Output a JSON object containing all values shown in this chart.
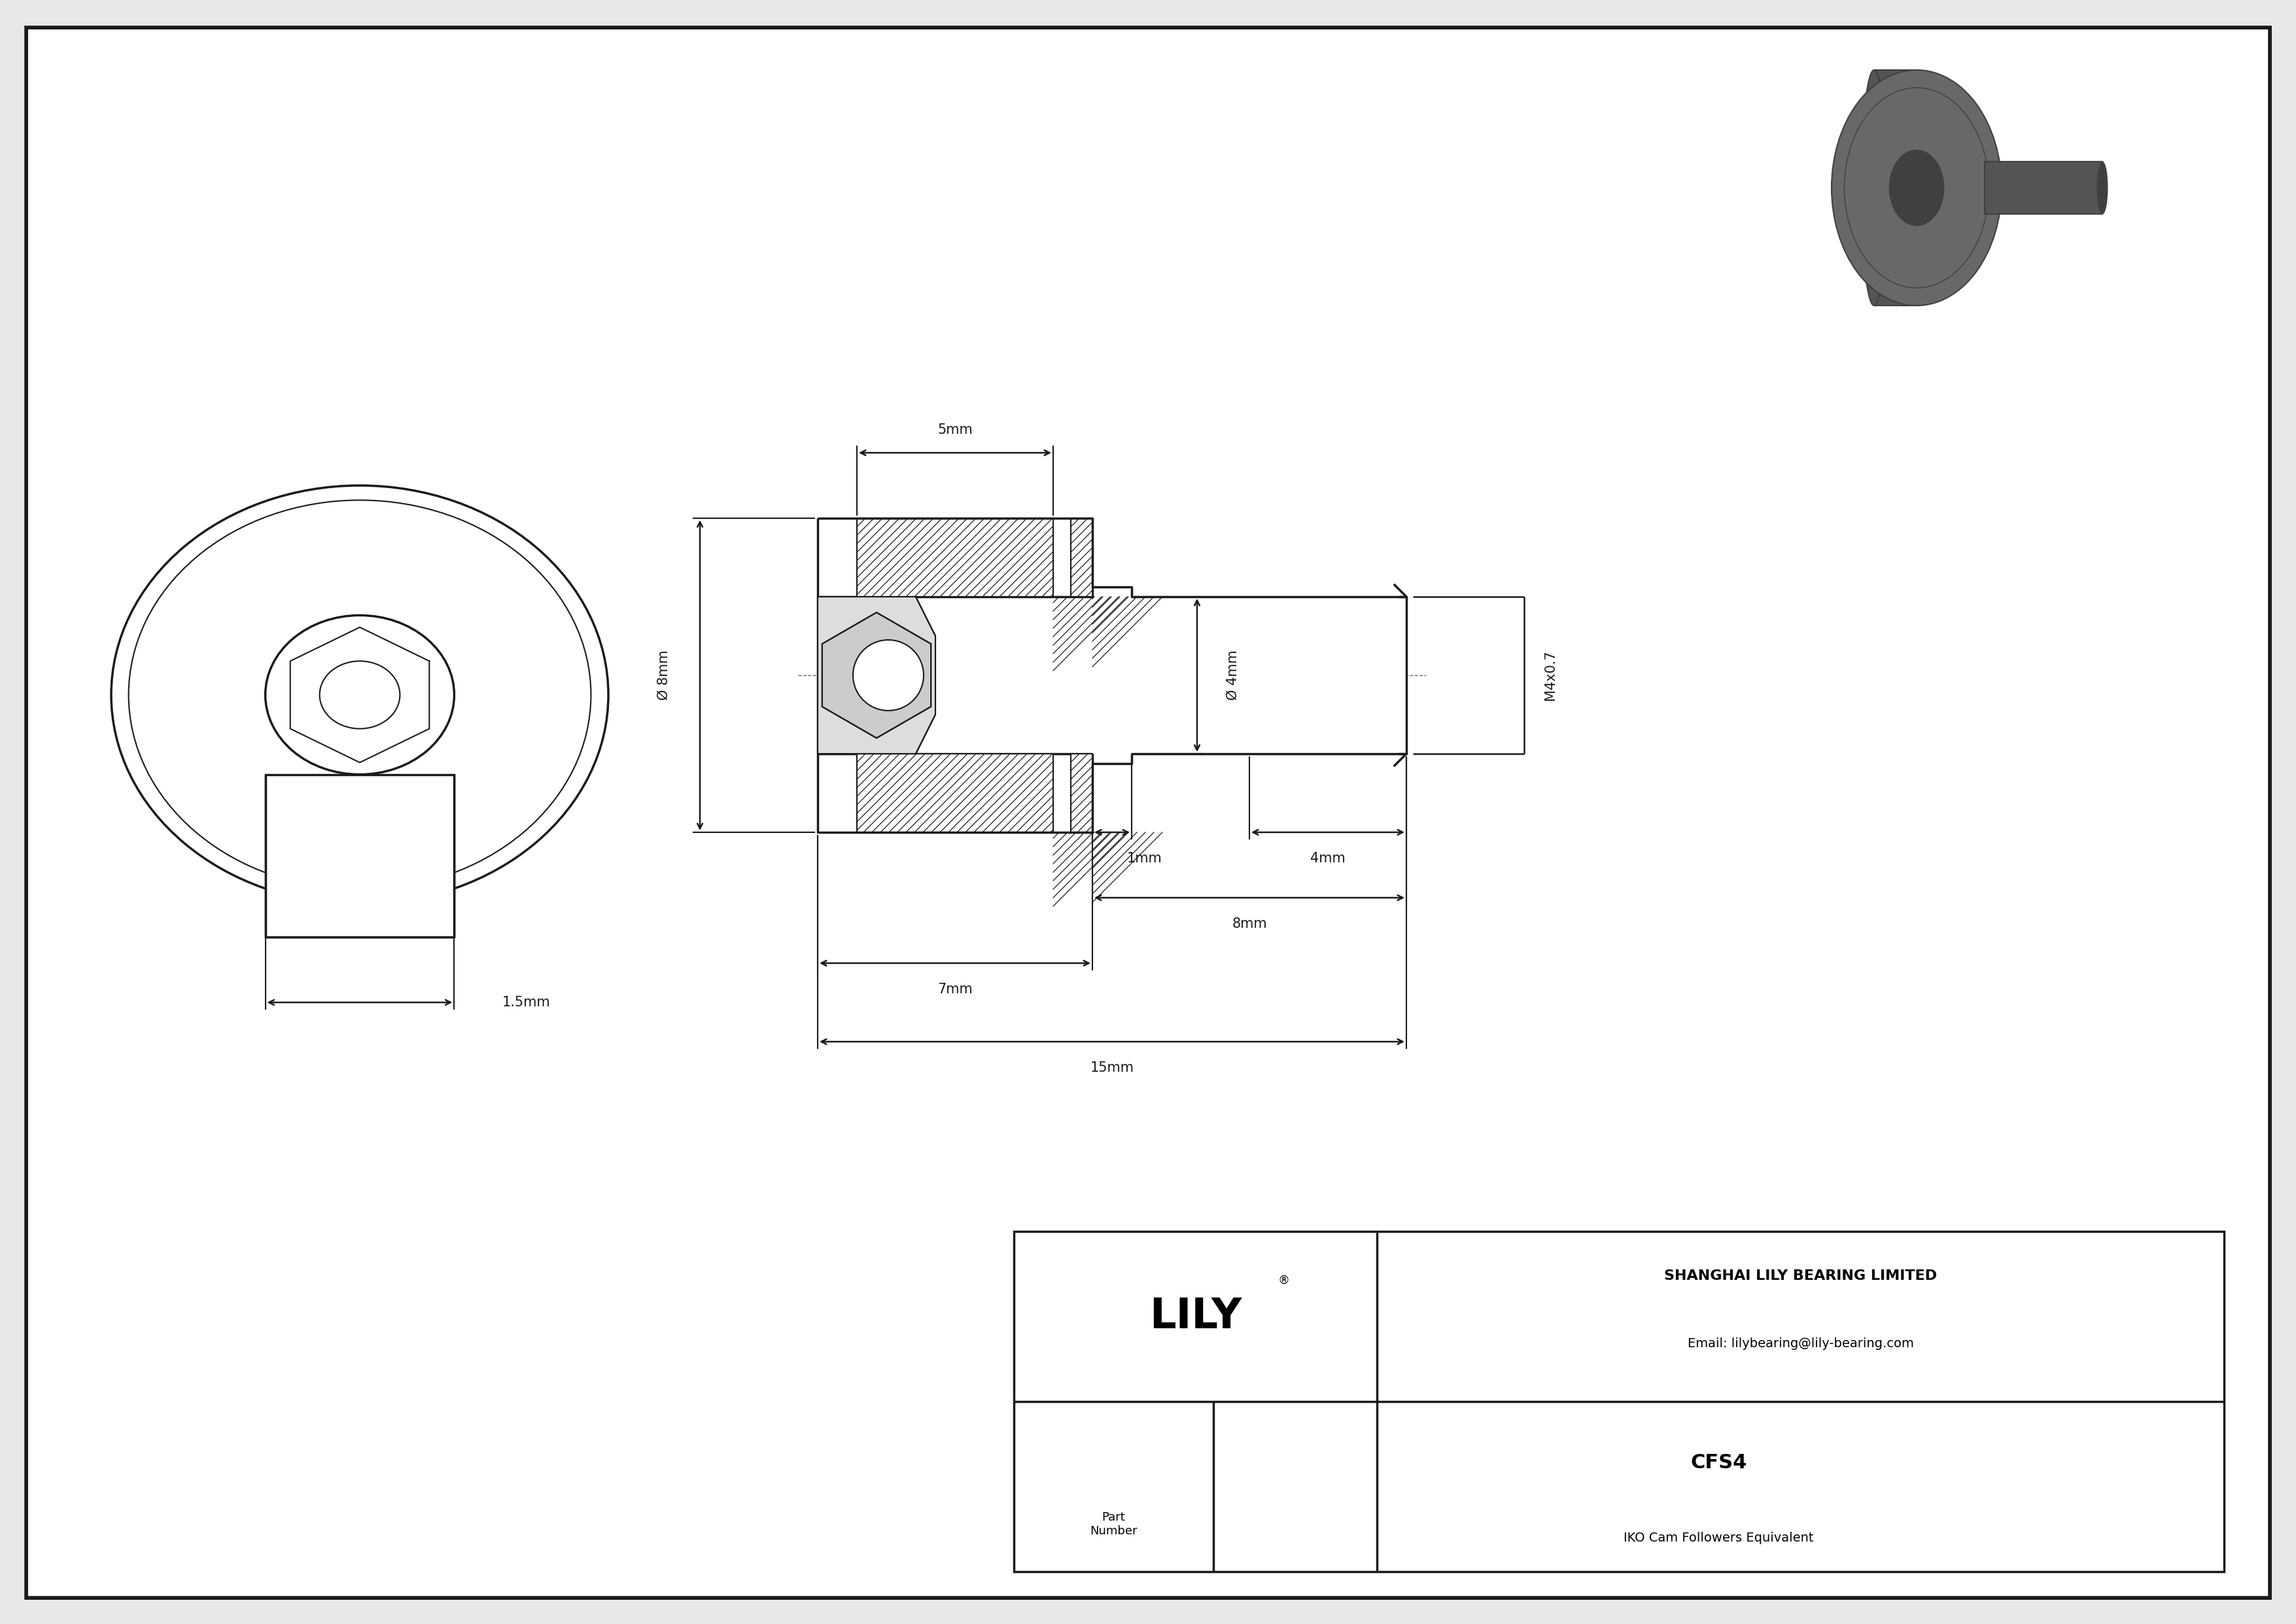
{
  "bg_color": "#e8e8e8",
  "draw_bg": "#ffffff",
  "line_color": "#1a1a1a",
  "dim_color": "#1a1a1a",
  "hatch_color": "#1a1a1a",
  "title": "CFS4",
  "subtitle": "IKO Cam Followers Equivalent",
  "company": "SHANGHAI LILY BEARING LIMITED",
  "email": "Email: lilybearing@lily-bearing.com",
  "part_label": "Part\nNumber",
  "logo": "LILY",
  "logo_reg": "®",
  "dims": {
    "thread_label": "M4x0.7",
    "dim_4mm_label": "4mm",
    "dim_8mm_label": "8mm",
    "dim_1mm_label": "1mm",
    "dim_7mm_label": "7mm",
    "dim_15mm_label": "15mm",
    "dim_5mm_label": "5mm",
    "dim_od8_label": "Ø 8mm",
    "dim_od4_label": "Ø 4mm",
    "dim_1_5mm_label": "1.5mm"
  }
}
